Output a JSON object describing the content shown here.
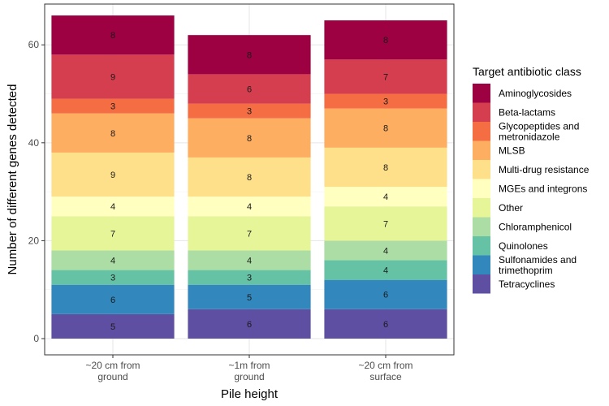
{
  "chart_data": {
    "type": "bar",
    "stacked": true,
    "xlabel": "Pile height",
    "ylabel": "Number of different genes detected",
    "ylim": [
      0,
      68
    ],
    "yticks": [
      0,
      20,
      40,
      60
    ],
    "grid": true,
    "legend_position": "right",
    "legend_title": "Target antibiotic class",
    "categories": [
      [
        "~20 cm from",
        "ground"
      ],
      [
        "~1m from",
        "ground"
      ],
      [
        "~20 cm from",
        "surface"
      ]
    ],
    "series": [
      {
        "name": "Tetracyclines",
        "color": "#5E4FA2",
        "values": [
          5,
          6,
          6
        ]
      },
      {
        "name": "Sulfonamides and trimethoprim",
        "legend_lines": [
          "Sulfonamides and",
          "trimethoprim"
        ],
        "color": "#3288BD",
        "values": [
          6,
          5,
          6
        ]
      },
      {
        "name": "Quinolones",
        "color": "#66C2A5",
        "values": [
          3,
          3,
          4
        ]
      },
      {
        "name": "Chloramphenicol",
        "color": "#ABDDA4",
        "values": [
          4,
          4,
          4
        ]
      },
      {
        "name": "Other",
        "color": "#E6F598",
        "values": [
          7,
          7,
          7
        ]
      },
      {
        "name": "MGEs and integrons",
        "color": "#FFFFBF",
        "values": [
          4,
          4,
          4
        ]
      },
      {
        "name": "Multi-drug resistance",
        "color": "#FEE08B",
        "values": [
          9,
          8,
          8
        ]
      },
      {
        "name": "MLSB",
        "color": "#FDAE61",
        "values": [
          8,
          8,
          8
        ]
      },
      {
        "name": "Glycopeptides and metronidazole",
        "legend_lines": [
          "Glycopeptides and",
          "metronidazole"
        ],
        "color": "#F46D43",
        "values": [
          3,
          3,
          3
        ]
      },
      {
        "name": "Beta-lactams",
        "color": "#D53E4F",
        "values": [
          9,
          6,
          7
        ]
      },
      {
        "name": "Aminoglycosides",
        "color": "#9E0142",
        "values": [
          8,
          8,
          8
        ]
      }
    ]
  }
}
